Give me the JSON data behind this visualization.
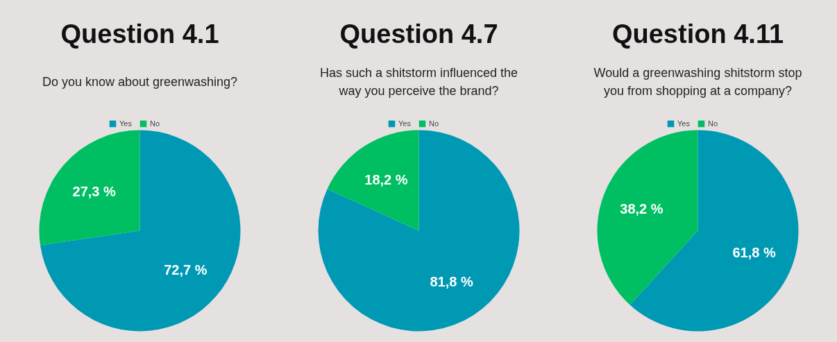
{
  "chart_data": [
    {
      "type": "pie",
      "title": "Question 4.1",
      "subtitle": "Do you know about greenwashing?",
      "categories": [
        "Yes",
        "No"
      ],
      "values": [
        72.7,
        27.3
      ],
      "colors": [
        "#0099b4",
        "#00bf63"
      ],
      "value_labels": [
        "72,7 %",
        "27,3 %"
      ],
      "legend": "top"
    },
    {
      "type": "pie",
      "title": "Question 4.7",
      "subtitle": "Has such a shitstorm influenced the\nway you perceive the brand?",
      "categories": [
        "Yes",
        "No"
      ],
      "values": [
        81.8,
        18.2
      ],
      "colors": [
        "#0099b4",
        "#00bf63"
      ],
      "value_labels": [
        "81,8 %",
        "18,2 %"
      ],
      "legend": "top"
    },
    {
      "type": "pie",
      "title": "Question 4.11",
      "subtitle": "Would a greenwashing shitstorm stop\nyou from shopping at a company?",
      "categories": [
        "Yes",
        "No"
      ],
      "values": [
        61.8,
        38.2
      ],
      "colors": [
        "#0099b4",
        "#00bf63"
      ],
      "value_labels": [
        "61,8 %",
        "38,2 %"
      ],
      "legend": "top"
    }
  ]
}
